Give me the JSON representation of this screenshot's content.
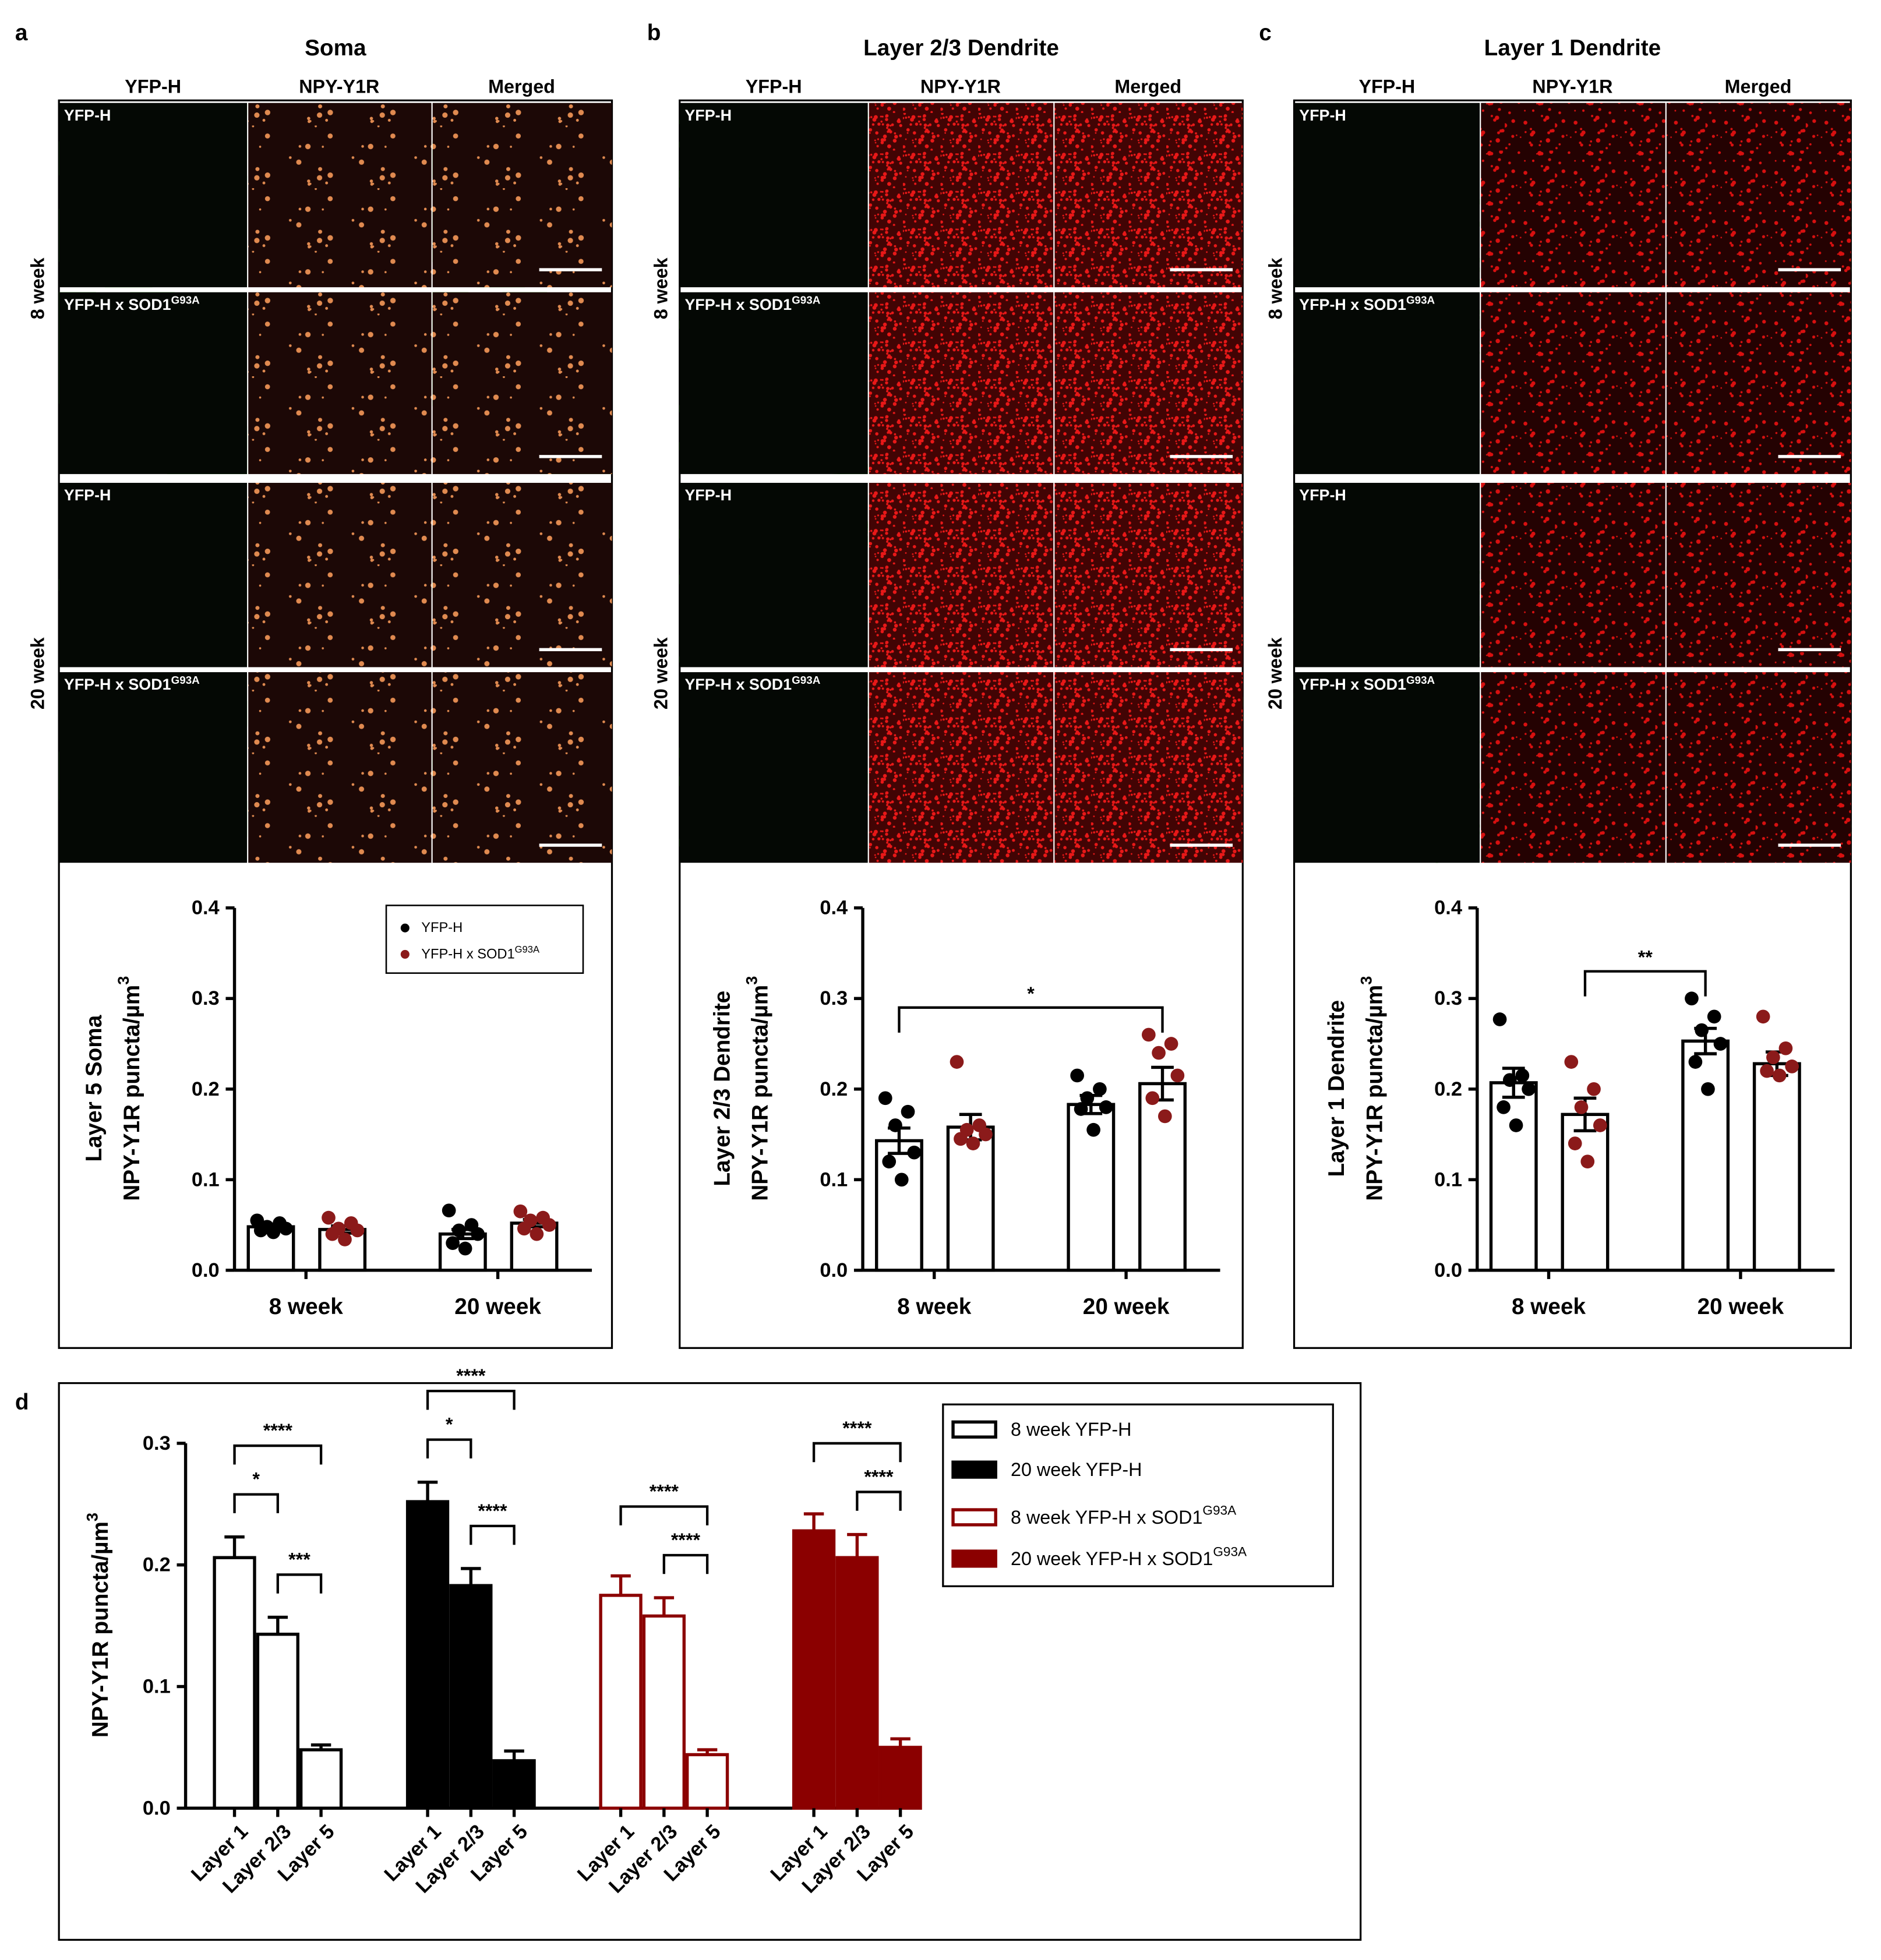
{
  "panel_labels": [
    "a",
    "b",
    "c",
    "d"
  ],
  "panels": [
    {
      "title": "Soma",
      "columns": [
        "YFP-H",
        "NPY-Y1R",
        "Merged"
      ],
      "groups": [
        "8 week",
        "20 week"
      ],
      "rows": [
        "YFP-H",
        {
          "text": "YFP-H x SOD1",
          "sup": "G93A"
        },
        "YFP-H",
        {
          "text": "YFP-H x SOD1",
          "sup": "G93A"
        }
      ]
    },
    {
      "title": "Layer 2/3 Dendrite",
      "columns": [
        "YFP-H",
        "NPY-Y1R",
        "Merged"
      ],
      "groups": [
        "8 week",
        "20 week"
      ],
      "rows": [
        "YFP-H",
        {
          "text": "YFP-H x SOD1",
          "sup": "G93A"
        },
        "YFP-H",
        {
          "text": "YFP-H x SOD1",
          "sup": "G93A"
        }
      ]
    },
    {
      "title": "Layer 1 Dendrite",
      "columns": [
        "YFP-H",
        "NPY-Y1R",
        "Merged"
      ],
      "groups": [
        "8 week",
        "20 week"
      ],
      "rows": [
        "YFP-H",
        {
          "text": "YFP-H x SOD1",
          "sup": "G93A"
        },
        "YFP-H",
        {
          "text": "YFP-H x SOD1",
          "sup": "G93A"
        }
      ]
    }
  ],
  "chart_data": [
    {
      "type": "bar",
      "categories": [
        "8 week",
        "20 week"
      ],
      "ylabel": [
        "Layer 5 Soma",
        {
          "text": "NPY-Y1R puncta/µm",
          "sup": "3"
        }
      ],
      "ylim": [
        0,
        0.4
      ],
      "yticks": [
        {
          "value": 0,
          "label": "0.0"
        },
        0.1,
        0.2,
        0.3,
        0.4
      ],
      "bar_fill": "#ffffff",
      "bar_edge": "#000000",
      "legend": true,
      "legend_position": "upper right",
      "series": [
        {
          "name": "YFP-H",
          "color": "#000000",
          "values": [
            0.048,
            0.04
          ],
          "errors": [
            0.003,
            0.005
          ],
          "points": [
            [
              0.055,
              0.052,
              0.048,
              0.046,
              0.044,
              0.042
            ],
            [
              0.066,
              0.05,
              0.044,
              0.04,
              0.03,
              0.024
            ]
          ]
        },
        {
          "name": {
            "text": "YFP-H x SOD1",
            "sup": "G93A"
          },
          "color": "#8b1a1a",
          "values": [
            0.045,
            0.052
          ],
          "errors": [
            0.004,
            0.004
          ],
          "points": [
            [
              0.058,
              0.052,
              0.046,
              0.044,
              0.04,
              0.034
            ],
            [
              0.065,
              0.058,
              0.055,
              0.05,
              0.046,
              0.04
            ]
          ]
        }
      ]
    },
    {
      "type": "bar",
      "categories": [
        "8 week",
        "20 week"
      ],
      "ylabel": [
        "Layer 2/3 Dendrite",
        {
          "text": "NPY-Y1R puncta/µm",
          "sup": "3"
        }
      ],
      "ylim": [
        0,
        0.4
      ],
      "yticks": [
        {
          "value": 0,
          "label": "0.0"
        },
        0.1,
        0.2,
        0.3,
        0.4
      ],
      "bar_fill": "#ffffff",
      "bar_edge": "#000000",
      "legend": false,
      "series": [
        {
          "name": "YFP-H",
          "color": "#000000",
          "values": [
            0.143,
            0.183
          ],
          "errors": [
            0.014,
            0.01
          ],
          "points": [
            [
              0.19,
              0.175,
              0.16,
              0.13,
              0.12,
              0.1
            ],
            [
              0.215,
              0.2,
              0.19,
              0.18,
              0.178,
              0.155
            ]
          ]
        },
        {
          "name": {
            "text": "YFP-H x SOD1",
            "sup": "G93A"
          },
          "color": "#8b1a1a",
          "values": [
            0.158,
            0.206
          ],
          "errors": [
            0.014,
            0.018
          ],
          "points": [
            [
              0.23,
              0.16,
              0.155,
              0.15,
              0.145,
              0.14
            ],
            [
              0.26,
              0.25,
              0.24,
              0.215,
              0.19,
              0.17
            ]
          ]
        }
      ],
      "significance": [
        {
          "from": [
            0,
            0
          ],
          "to": [
            1,
            1
          ],
          "label": "*"
        }
      ]
    },
    {
      "type": "bar",
      "categories": [
        "8 week",
        "20 week"
      ],
      "ylabel": [
        "Layer 1 Dendrite",
        {
          "text": "NPY-Y1R puncta/µm",
          "sup": "3"
        }
      ],
      "ylim": [
        0,
        0.4
      ],
      "yticks": [
        {
          "value": 0,
          "label": "0.0"
        },
        0.1,
        0.2,
        0.3,
        0.4
      ],
      "bar_fill": "#ffffff",
      "bar_edge": "#000000",
      "legend": false,
      "series": [
        {
          "name": "YFP-H",
          "color": "#000000",
          "values": [
            0.207,
            0.253
          ],
          "errors": [
            0.016,
            0.014
          ],
          "points": [
            [
              0.277,
              0.215,
              0.21,
              0.2,
              0.18,
              0.16
            ],
            [
              0.3,
              0.28,
              0.265,
              0.25,
              0.23,
              0.2
            ]
          ]
        },
        {
          "name": {
            "text": "YFP-H x SOD1",
            "sup": "G93A"
          },
          "color": "#8b1a1a",
          "values": [
            0.172,
            0.228
          ],
          "errors": [
            0.018,
            0.013
          ],
          "points": [
            [
              0.23,
              0.2,
              0.18,
              0.16,
              0.14,
              0.12
            ],
            [
              0.28,
              0.245,
              0.235,
              0.225,
              0.22,
              0.215
            ]
          ]
        }
      ],
      "significance": [
        {
          "from": [
            0,
            1
          ],
          "to": [
            1,
            0
          ],
          "label": "**"
        }
      ]
    },
    {
      "type": "bar",
      "categories": [
        "Layer 1",
        "Layer 2/3",
        "Layer 5"
      ],
      "ylabel": {
        "text": "NPY-Y1R puncta/µm",
        "sup": "3"
      },
      "ylim": [
        0,
        0.3
      ],
      "yticks": [
        {
          "value": 0,
          "label": "0.0"
        },
        0.1,
        0.2,
        0.3
      ],
      "legend": true,
      "legend_position": "upper right",
      "series": [
        {
          "name": "8 week YFP-H",
          "fill": "#ffffff",
          "color": "#000000",
          "values": [
            0.206,
            0.143,
            0.048
          ],
          "errors": [
            0.017,
            0.014,
            0.004
          ],
          "significance": [
            {
              "from": 0,
              "to": 2,
              "label": "****"
            },
            {
              "from": 0,
              "to": 1,
              "label": "*"
            },
            {
              "from": 1,
              "to": 2,
              "label": "***"
            }
          ]
        },
        {
          "name": "20 week YFP-H",
          "fill": "#000000",
          "color": "#000000",
          "values": [
            0.252,
            0.183,
            0.039
          ],
          "errors": [
            0.016,
            0.014,
            0.008
          ],
          "significance": [
            {
              "from": 0,
              "to": 2,
              "label": "****"
            },
            {
              "from": 0,
              "to": 1,
              "label": "*"
            },
            {
              "from": 1,
              "to": 2,
              "label": "****"
            }
          ]
        },
        {
          "name": {
            "text": "8 week YFP-H x SOD1",
            "sup": "G93A"
          },
          "fill": "#ffffff",
          "color": "#8b0000",
          "values": [
            0.175,
            0.158,
            0.044
          ],
          "errors": [
            0.016,
            0.015,
            0.004
          ],
          "significance": [
            {
              "from": 0,
              "to": 2,
              "label": "****"
            },
            {
              "from": 1,
              "to": 2,
              "label": "****"
            }
          ]
        },
        {
          "name": {
            "text": "20 week YFP-H x SOD1",
            "sup": "G93A"
          },
          "fill": "#8b0000",
          "color": "#8b0000",
          "values": [
            0.228,
            0.206,
            0.05
          ],
          "errors": [
            0.014,
            0.019,
            0.007
          ],
          "significance": [
            {
              "from": 0,
              "to": 2,
              "label": "****"
            },
            {
              "from": 1,
              "to": 2,
              "label": "****"
            }
          ]
        }
      ]
    }
  ]
}
